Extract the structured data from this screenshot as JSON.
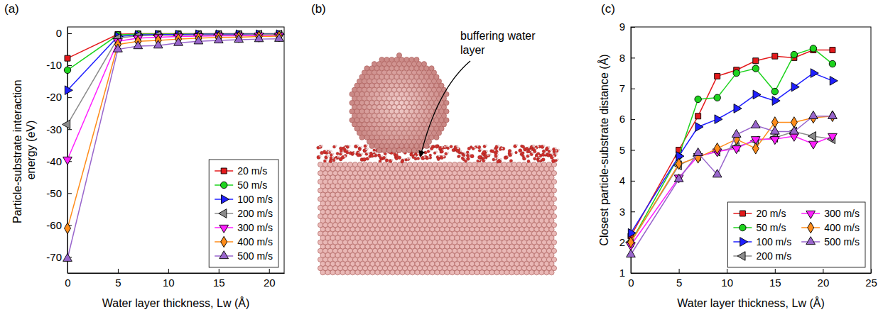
{
  "chart_data": [
    {
      "type": "line",
      "title": "(a)",
      "xlabel": "Water layer thickness, Lw (Å)",
      "ylabel": "Particle-substrate interaction energy (eV)",
      "x": [
        0,
        5,
        7,
        9,
        11,
        13,
        15,
        17,
        19,
        21
      ],
      "xlim": [
        0,
        21.5
      ],
      "xticks": [
        0,
        5,
        10,
        15,
        20
      ],
      "ylim": [
        -75,
        2
      ],
      "yticks": [
        -70,
        -60,
        -50,
        -40,
        -30,
        -20,
        -10,
        0
      ],
      "grid": false,
      "legend": "lower right",
      "series": [
        {
          "name": "20 m/s",
          "color": "#e41a1c",
          "marker": "square",
          "values": [
            -7.8,
            -0.3,
            -0.1,
            -0.1,
            -0.1,
            -0.1,
            -0.1,
            -0.1,
            -0.1,
            -0.1
          ]
        },
        {
          "name": "50 m/s",
          "color": "#1ed31e",
          "marker": "circle",
          "values": [
            -11.5,
            -0.5,
            -0.2,
            -0.2,
            -0.2,
            -0.2,
            -0.2,
            -0.2,
            -0.2,
            -0.2
          ]
        },
        {
          "name": "100 m/s",
          "color": "#1f1fff",
          "marker": "triangle-right",
          "values": [
            -17.8,
            -1.0,
            -0.5,
            -0.4,
            -0.4,
            -0.3,
            -0.3,
            -0.3,
            -0.3,
            -0.3
          ]
        },
        {
          "name": "200 m/s",
          "color": "#8c8c8c",
          "marker": "triangle-left",
          "values": [
            -28.5,
            -1.5,
            -0.8,
            -0.6,
            -0.6,
            -0.5,
            -0.5,
            -0.5,
            -0.4,
            -0.4
          ]
        },
        {
          "name": "300 m/s",
          "color": "#ff1fff",
          "marker": "triangle-down",
          "values": [
            -39.5,
            -2.5,
            -1.5,
            -1.2,
            -1.0,
            -0.9,
            -0.8,
            -0.8,
            -0.7,
            -0.7
          ]
        },
        {
          "name": "400 m/s",
          "color": "#ff8c1a",
          "marker": "diamond",
          "values": [
            -61,
            -3.5,
            -2.5,
            -2.2,
            -1.8,
            -1.5,
            -1.3,
            -1.2,
            -1.0,
            -0.9
          ]
        },
        {
          "name": "500 m/s",
          "color": "#9966cc",
          "marker": "triangle-up",
          "values": [
            -70.5,
            -5,
            -4,
            -3.8,
            -3,
            -2.5,
            -2.2,
            -2,
            -1.8,
            -1.7
          ]
        }
      ]
    },
    {
      "type": "line",
      "title": "(c)",
      "xlabel": "Water layer thickness, Lw (Å)",
      "ylabel": "Closest particle-substrate distance (Å)",
      "x": [
        0,
        5,
        7,
        9,
        11,
        13,
        15,
        17,
        19,
        21
      ],
      "xlim": [
        0,
        25
      ],
      "xticks": [
        0,
        5,
        10,
        15,
        20,
        25
      ],
      "ylim": [
        1,
        9
      ],
      "yticks": [
        1,
        2,
        3,
        4,
        5,
        6,
        7,
        8,
        9
      ],
      "grid": false,
      "legend": "lower right",
      "series": [
        {
          "name": "20 m/s",
          "color": "#e41a1c",
          "marker": "square",
          "values": [
            2.2,
            5.0,
            6.1,
            7.4,
            7.6,
            7.9,
            8.05,
            8.0,
            8.25,
            8.25
          ]
        },
        {
          "name": "50 m/s",
          "color": "#1ed31e",
          "marker": "circle",
          "values": [
            2.0,
            4.8,
            6.65,
            6.7,
            7.5,
            7.65,
            6.9,
            8.1,
            8.3,
            7.8
          ]
        },
        {
          "name": "100 m/s",
          "color": "#1f1fff",
          "marker": "triangle-right",
          "values": [
            2.3,
            4.8,
            5.75,
            6.0,
            6.35,
            6.8,
            6.6,
            7.05,
            7.5,
            7.25
          ]
        },
        {
          "name": "200 m/s",
          "color": "#8c8c8c",
          "marker": "triangle-left",
          "values": [
            2.0,
            4.5,
            4.8,
            4.95,
            5.1,
            5.3,
            5.4,
            5.6,
            5.45,
            5.35
          ]
        },
        {
          "name": "300 m/s",
          "color": "#ff1fff",
          "marker": "triangle-down",
          "values": [
            1.9,
            4.1,
            4.8,
            4.95,
            5.05,
            5.35,
            5.35,
            5.45,
            5.2,
            5.45
          ]
        },
        {
          "name": "400 m/s",
          "color": "#ff8c1a",
          "marker": "diamond",
          "values": [
            2.0,
            4.55,
            4.75,
            5.05,
            5.35,
            5.05,
            5.9,
            5.9,
            6.05,
            6.1
          ]
        },
        {
          "name": "500 m/s",
          "color": "#9966cc",
          "marker": "triangle-up",
          "values": [
            1.6,
            4.05,
            4.9,
            4.2,
            5.5,
            5.8,
            5.6,
            5.6,
            6.1,
            6.1
          ]
        }
      ]
    }
  ],
  "diagram": {
    "label": "(b)",
    "annotation": "buffering water layer"
  }
}
